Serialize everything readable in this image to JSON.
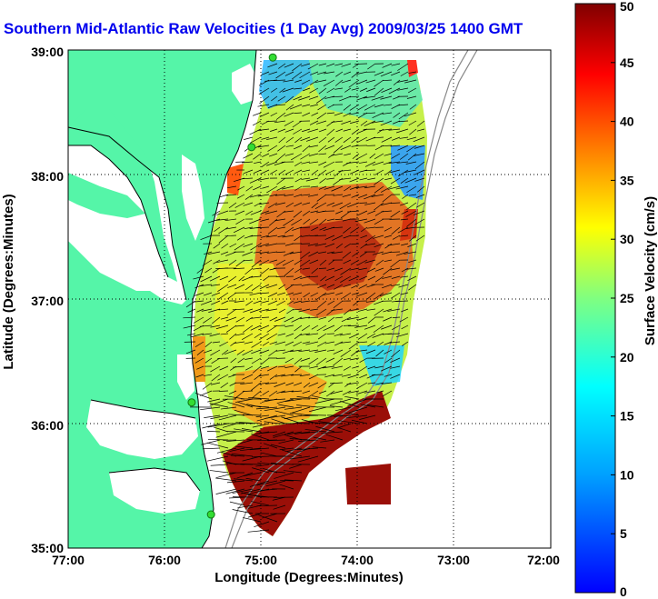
{
  "title": "Southern Mid-Atlantic Raw Velocities (1 Day Avg) 2009/03/25 1400 GMT",
  "axes": {
    "xlabel": "Longitude (Degrees:Minutes)",
    "ylabel": "Latitude (Degrees:Minutes)",
    "xticks": [
      "77:00",
      "76:00",
      "75:00",
      "74:00",
      "73:00",
      "72:00"
    ],
    "yticks": [
      "39:00",
      "38:00",
      "37:00",
      "36:00",
      "35:00"
    ]
  },
  "colorbar": {
    "label": "Surface Velocity (cm/s)",
    "min": 0,
    "max": 50,
    "ticks": [
      "50",
      "45",
      "40",
      "35",
      "30",
      "25",
      "20",
      "15",
      "10",
      "5",
      "0"
    ]
  },
  "colors": {
    "land": "#55f5a8",
    "title": "#0000ee",
    "station": "#33dd33"
  },
  "map_extent": {
    "lon": [
      -77,
      -72
    ],
    "lat": [
      35,
      39
    ]
  },
  "stations": [
    {
      "lon": -74.88,
      "lat": 38.94
    },
    {
      "lon": -75.1,
      "lat": 38.22
    },
    {
      "lon": -75.72,
      "lat": 36.17
    },
    {
      "lon": -75.52,
      "lat": 35.27
    }
  ]
}
